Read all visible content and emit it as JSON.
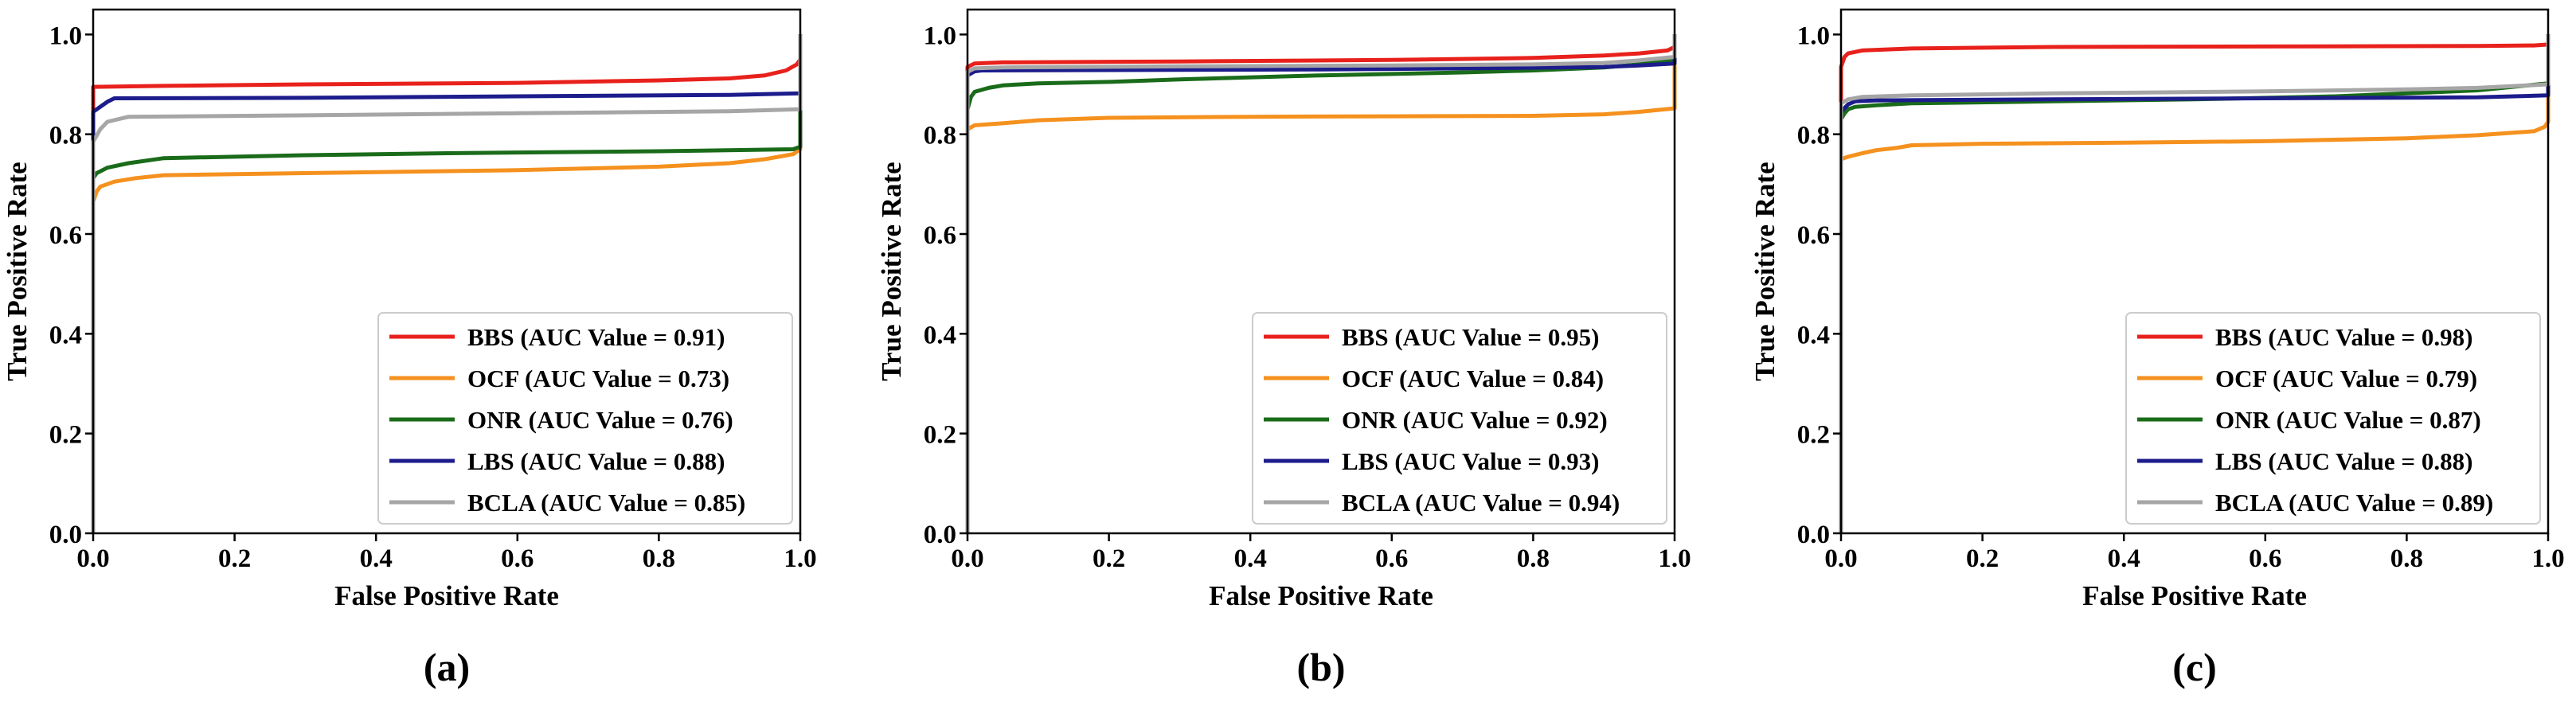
{
  "chart_data": [
    {
      "type": "line",
      "panel_label": "(a)",
      "xlabel": "False Positive Rate",
      "ylabel": "True Positive Rate",
      "xlim": [
        0,
        1
      ],
      "ylim": [
        0,
        1.05
      ],
      "xticks": [
        "0.0",
        "0.2",
        "0.4",
        "0.6",
        "0.8",
        "1.0"
      ],
      "yticks": [
        "0.0",
        "0.2",
        "0.4",
        "0.6",
        "0.8",
        "1.0"
      ],
      "legend_position": "lower-right",
      "series": [
        {
          "name": "BBS",
          "label": "BBS (AUC Value = 0.91)",
          "color": "#e8211c",
          "x": [
            0,
            0,
            0.1,
            0.3,
            0.6,
            0.8,
            0.9,
            0.95,
            0.98,
            0.995,
            1.0,
            1.0
          ],
          "y": [
            0,
            0.895,
            0.897,
            0.9,
            0.903,
            0.908,
            0.912,
            0.918,
            0.928,
            0.94,
            0.95,
            1.0
          ]
        },
        {
          "name": "OCF",
          "label": "OCF (AUC Value = 0.73)",
          "color": "#f5911e",
          "x": [
            0,
            0,
            0.005,
            0.01,
            0.03,
            0.06,
            0.1,
            0.3,
            0.6,
            0.8,
            0.9,
            0.95,
            0.99,
            1.0,
            1.0
          ],
          "y": [
            0,
            0.665,
            0.685,
            0.695,
            0.705,
            0.712,
            0.718,
            0.722,
            0.728,
            0.735,
            0.742,
            0.75,
            0.76,
            0.77,
            1.0
          ]
        },
        {
          "name": "ONR",
          "label": "ONR (AUC Value = 0.76)",
          "color": "#1a6b1a",
          "x": [
            0,
            0,
            0.005,
            0.02,
            0.05,
            0.1,
            0.3,
            0.5,
            0.8,
            0.99,
            1.0,
            1.0
          ],
          "y": [
            0,
            0.712,
            0.722,
            0.733,
            0.742,
            0.752,
            0.758,
            0.762,
            0.766,
            0.77,
            0.775,
            1.0
          ]
        },
        {
          "name": "LBS",
          "label": "LBS (AUC Value = 0.88)",
          "color": "#1c1c8c",
          "x": [
            0,
            0,
            0.01,
            0.02,
            0.03,
            0.3,
            0.6,
            0.9,
            1.0,
            1.0
          ],
          "y": [
            0,
            0.845,
            0.855,
            0.865,
            0.872,
            0.873,
            0.876,
            0.879,
            0.882,
            1.0
          ]
        },
        {
          "name": "BCLA",
          "label": "BCLA (AUC Value = 0.85)",
          "color": "#a6a6a6",
          "x": [
            0,
            0,
            0.01,
            0.02,
            0.05,
            0.3,
            0.6,
            0.9,
            1.0,
            1.0
          ],
          "y": [
            0,
            0.785,
            0.81,
            0.825,
            0.835,
            0.838,
            0.842,
            0.846,
            0.85,
            1.0
          ]
        }
      ]
    },
    {
      "type": "line",
      "panel_label": "(b)",
      "xlabel": "False Positive Rate",
      "ylabel": "True Positive Rate",
      "xlim": [
        0,
        1
      ],
      "ylim": [
        0,
        1.05
      ],
      "xticks": [
        "0.0",
        "0.2",
        "0.4",
        "0.6",
        "0.8",
        "1.0"
      ],
      "yticks": [
        "0.0",
        "0.2",
        "0.4",
        "0.6",
        "0.8",
        "1.0"
      ],
      "legend_position": "lower-right",
      "series": [
        {
          "name": "BBS",
          "label": "BBS (AUC Value = 0.95)",
          "color": "#e8211c",
          "x": [
            0,
            0,
            0.01,
            0.05,
            0.3,
            0.6,
            0.8,
            0.9,
            0.95,
            0.99,
            1.0,
            1.0
          ],
          "y": [
            0,
            0.935,
            0.942,
            0.944,
            0.946,
            0.949,
            0.953,
            0.958,
            0.962,
            0.968,
            0.975,
            1.0
          ]
        },
        {
          "name": "OCF",
          "label": "OCF (AUC Value = 0.84)",
          "color": "#f5911e",
          "x": [
            0,
            0,
            0.01,
            0.05,
            0.1,
            0.2,
            0.4,
            0.6,
            0.8,
            0.9,
            0.95,
            1.0,
            1.0
          ],
          "y": [
            0,
            0.81,
            0.818,
            0.822,
            0.828,
            0.833,
            0.835,
            0.836,
            0.837,
            0.84,
            0.845,
            0.852,
            1.0
          ]
        },
        {
          "name": "ONR",
          "label": "ONR (AUC Value = 0.92)",
          "color": "#1a6b1a",
          "x": [
            0,
            0,
            0.005,
            0.01,
            0.03,
            0.05,
            0.1,
            0.2,
            0.3,
            0.5,
            0.7,
            0.8,
            0.9,
            0.95,
            1.0,
            1.0
          ],
          "y": [
            0,
            0.85,
            0.875,
            0.885,
            0.893,
            0.898,
            0.902,
            0.905,
            0.91,
            0.918,
            0.924,
            0.928,
            0.934,
            0.94,
            0.95,
            1.0
          ]
        },
        {
          "name": "LBS",
          "label": "LBS (AUC Value = 0.93)",
          "color": "#1c1c8c",
          "x": [
            0,
            0,
            0.01,
            0.02,
            0.3,
            0.5,
            0.7,
            0.9,
            0.95,
            1.0,
            1.0
          ],
          "y": [
            0,
            0.918,
            0.926,
            0.928,
            0.929,
            0.93,
            0.932,
            0.935,
            0.938,
            0.942,
            1.0
          ]
        },
        {
          "name": "BCLA",
          "label": "BCLA (AUC Value = 0.94)",
          "color": "#a6a6a6",
          "x": [
            0,
            0,
            0.01,
            0.05,
            0.3,
            0.6,
            0.8,
            0.9,
            0.95,
            1.0,
            1.0
          ],
          "y": [
            0,
            0.925,
            0.932,
            0.934,
            0.936,
            0.938,
            0.94,
            0.943,
            0.948,
            0.955,
            1.0
          ]
        }
      ]
    },
    {
      "type": "line",
      "panel_label": "(c)",
      "xlabel": "False Positive Rate",
      "ylabel": "True Positive Rate",
      "xlim": [
        0,
        1
      ],
      "ylim": [
        0,
        1.05
      ],
      "xticks": [
        "0.0",
        "0.2",
        "0.4",
        "0.6",
        "0.8",
        "1.0"
      ],
      "yticks": [
        "0.0",
        "0.2",
        "0.4",
        "0.6",
        "0.8",
        "1.0"
      ],
      "legend_position": "lower-right",
      "series": [
        {
          "name": "BBS",
          "label": "BBS (AUC Value = 0.98)",
          "color": "#e8211c",
          "x": [
            0,
            0,
            0.005,
            0.01,
            0.03,
            0.1,
            0.3,
            0.6,
            0.9,
            0.98,
            1.0,
            1.0
          ],
          "y": [
            0,
            0.935,
            0.955,
            0.962,
            0.968,
            0.972,
            0.975,
            0.976,
            0.977,
            0.978,
            0.98,
            1.0
          ]
        },
        {
          "name": "OCF",
          "label": "OCF (AUC Value = 0.79)",
          "color": "#f5911e",
          "x": [
            0,
            0,
            0.01,
            0.03,
            0.05,
            0.08,
            0.1,
            0.2,
            0.4,
            0.6,
            0.8,
            0.9,
            0.95,
            0.98,
            0.995,
            1.0,
            1.0
          ],
          "y": [
            0,
            0.75,
            0.755,
            0.762,
            0.768,
            0.773,
            0.778,
            0.781,
            0.783,
            0.786,
            0.792,
            0.798,
            0.803,
            0.806,
            0.815,
            0.825,
            1.0
          ]
        },
        {
          "name": "ONR",
          "label": "ONR (AUC Value = 0.87)",
          "color": "#1a6b1a",
          "x": [
            0,
            0,
            0.005,
            0.01,
            0.02,
            0.05,
            0.1,
            0.3,
            0.5,
            0.7,
            0.8,
            0.9,
            0.95,
            1.0,
            1.0
          ],
          "y": [
            0,
            0.83,
            0.842,
            0.85,
            0.855,
            0.858,
            0.862,
            0.866,
            0.87,
            0.876,
            0.882,
            0.888,
            0.895,
            0.902,
            1.0
          ]
        },
        {
          "name": "LBS",
          "label": "LBS (AUC Value = 0.88)",
          "color": "#1c1c8c",
          "x": [
            0,
            0,
            0.01,
            0.02,
            0.05,
            0.3,
            0.6,
            0.9,
            1.0,
            1.0
          ],
          "y": [
            0,
            0.845,
            0.86,
            0.866,
            0.868,
            0.87,
            0.872,
            0.874,
            0.878,
            1.0
          ]
        },
        {
          "name": "BCLA",
          "label": "BCLA (AUC Value = 0.89)",
          "color": "#a6a6a6",
          "x": [
            0,
            0,
            0.01,
            0.03,
            0.1,
            0.3,
            0.6,
            0.8,
            0.9,
            1.0,
            1.0
          ],
          "y": [
            0,
            0.862,
            0.87,
            0.875,
            0.878,
            0.882,
            0.886,
            0.89,
            0.893,
            0.9,
            1.0
          ]
        }
      ]
    }
  ]
}
